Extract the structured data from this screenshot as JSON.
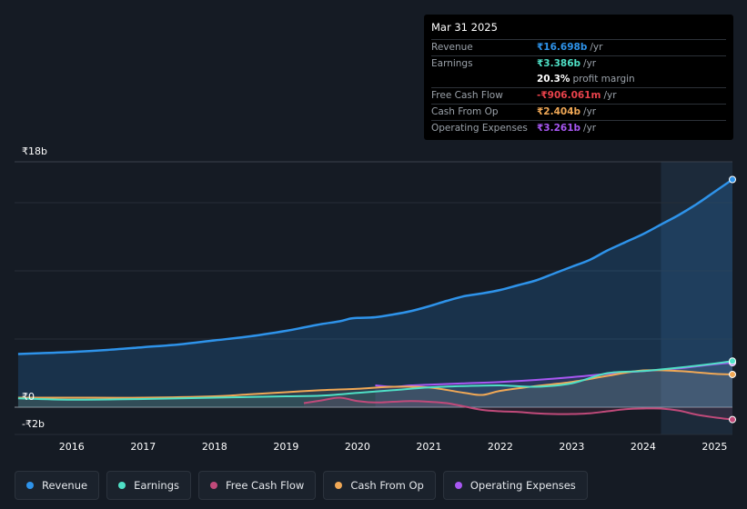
{
  "tooltip": {
    "date": "Mar 31 2025",
    "rows": [
      {
        "label": "Revenue",
        "value": "₹16.698b",
        "unit": "/yr",
        "color": "#2e93ea"
      },
      {
        "label": "Earnings",
        "value": "₹3.386b",
        "unit": "/yr",
        "color": "#4fe0c6"
      },
      {
        "label": "",
        "value": "20.3%",
        "unit": "profit margin",
        "color": "#ffffff"
      },
      {
        "label": "Free Cash Flow",
        "value": "-₹906.061m",
        "unit": "/yr",
        "color": "#e8424b"
      },
      {
        "label": "Cash From Op",
        "value": "₹2.404b",
        "unit": "/yr",
        "color": "#f0a856"
      },
      {
        "label": "Operating Expenses",
        "value": "₹3.261b",
        "unit": "/yr",
        "color": "#a857f2"
      }
    ]
  },
  "axis": {
    "y_top_label": "₹18b",
    "y_zero_label": "₹0",
    "y_bottom_label": "-₹2b"
  },
  "legend": [
    {
      "label": "Revenue",
      "color": "#2e93ea"
    },
    {
      "label": "Earnings",
      "color": "#4fe0c6"
    },
    {
      "label": "Free Cash Flow",
      "color": "#c04a7a"
    },
    {
      "label": "Cash From Op",
      "color": "#f0a856"
    },
    {
      "label": "Operating Expenses",
      "color": "#a857f2"
    }
  ],
  "chart_data": {
    "type": "line",
    "title": "",
    "xlabel": "",
    "ylabel": "",
    "ylim": [
      -2,
      18
    ],
    "x_ticks": [
      2016,
      2017,
      2018,
      2019,
      2020,
      2021,
      2022,
      2023,
      2024,
      2025
    ],
    "x_range": [
      2015.2,
      2025.25
    ],
    "highlight_start": 2024.25,
    "series": [
      {
        "name": "Revenue",
        "color": "#2e93ea",
        "x": [
          2015.25,
          2015.5,
          2016,
          2016.5,
          2017,
          2017.5,
          2018,
          2018.5,
          2019,
          2019.25,
          2019.5,
          2019.75,
          2019.9,
          2020,
          2020.25,
          2020.5,
          2020.75,
          2021,
          2021.25,
          2021.5,
          2021.75,
          2022,
          2022.25,
          2022.5,
          2022.75,
          2023,
          2023.25,
          2023.5,
          2023.75,
          2024,
          2024.25,
          2024.5,
          2024.75,
          2025,
          2025.25
        ],
        "y": [
          3.9,
          3.95,
          4.05,
          4.2,
          4.4,
          4.6,
          4.9,
          5.2,
          5.6,
          5.85,
          6.1,
          6.3,
          6.5,
          6.55,
          6.6,
          6.8,
          7.05,
          7.4,
          7.8,
          8.15,
          8.35,
          8.6,
          8.95,
          9.3,
          9.8,
          10.3,
          10.8,
          11.5,
          12.1,
          12.7,
          13.4,
          14.1,
          14.9,
          15.8,
          16.7
        ]
      },
      {
        "name": "Earnings",
        "color": "#4fe0c6",
        "x": [
          2015.25,
          2016,
          2017,
          2018,
          2018.5,
          2019,
          2019.5,
          2020,
          2020.5,
          2021,
          2021.5,
          2022,
          2022.5,
          2023,
          2023.5,
          2024,
          2024.5,
          2025,
          2025.25
        ],
        "y": [
          0.65,
          0.55,
          0.6,
          0.7,
          0.75,
          0.8,
          0.85,
          1.05,
          1.25,
          1.45,
          1.55,
          1.6,
          1.5,
          1.75,
          2.5,
          2.65,
          2.9,
          3.2,
          3.386
        ]
      },
      {
        "name": "Free Cash Flow",
        "color": "#c04a7a",
        "x": [
          2019.25,
          2019.5,
          2019.75,
          2020,
          2020.25,
          2020.5,
          2020.75,
          2021,
          2021.25,
          2021.5,
          2021.75,
          2022,
          2022.25,
          2022.5,
          2022.75,
          2023,
          2023.25,
          2023.5,
          2023.75,
          2024,
          2024.25,
          2024.5,
          2024.75,
          2025,
          2025.25
        ],
        "y": [
          0.3,
          0.5,
          0.7,
          0.45,
          0.35,
          0.4,
          0.45,
          0.4,
          0.3,
          0.05,
          -0.2,
          -0.3,
          -0.35,
          -0.45,
          -0.5,
          -0.5,
          -0.45,
          -0.3,
          -0.15,
          -0.1,
          -0.1,
          -0.25,
          -0.55,
          -0.75,
          -0.906
        ]
      },
      {
        "name": "Cash From Op",
        "color": "#f0a856",
        "x": [
          2015.25,
          2016,
          2017,
          2018,
          2018.5,
          2019,
          2019.5,
          2020,
          2020.5,
          2021,
          2021.5,
          2021.75,
          2022,
          2022.5,
          2023,
          2023.5,
          2024,
          2024.5,
          2025,
          2025.25
        ],
        "y": [
          0.7,
          0.7,
          0.7,
          0.8,
          0.95,
          1.1,
          1.25,
          1.35,
          1.5,
          1.45,
          1.05,
          0.9,
          1.2,
          1.55,
          1.85,
          2.3,
          2.7,
          2.65,
          2.45,
          2.404
        ]
      },
      {
        "name": "Operating Expenses",
        "color": "#a857f2",
        "x": [
          2020.25,
          2020.5,
          2020.75,
          2021,
          2021.5,
          2022,
          2022.5,
          2023,
          2023.5,
          2024,
          2024.5,
          2024.75,
          2025,
          2025.25
        ],
        "y": [
          1.6,
          1.5,
          1.6,
          1.65,
          1.75,
          1.85,
          2.0,
          2.2,
          2.45,
          2.65,
          2.85,
          3.0,
          3.15,
          3.261
        ]
      }
    ]
  }
}
